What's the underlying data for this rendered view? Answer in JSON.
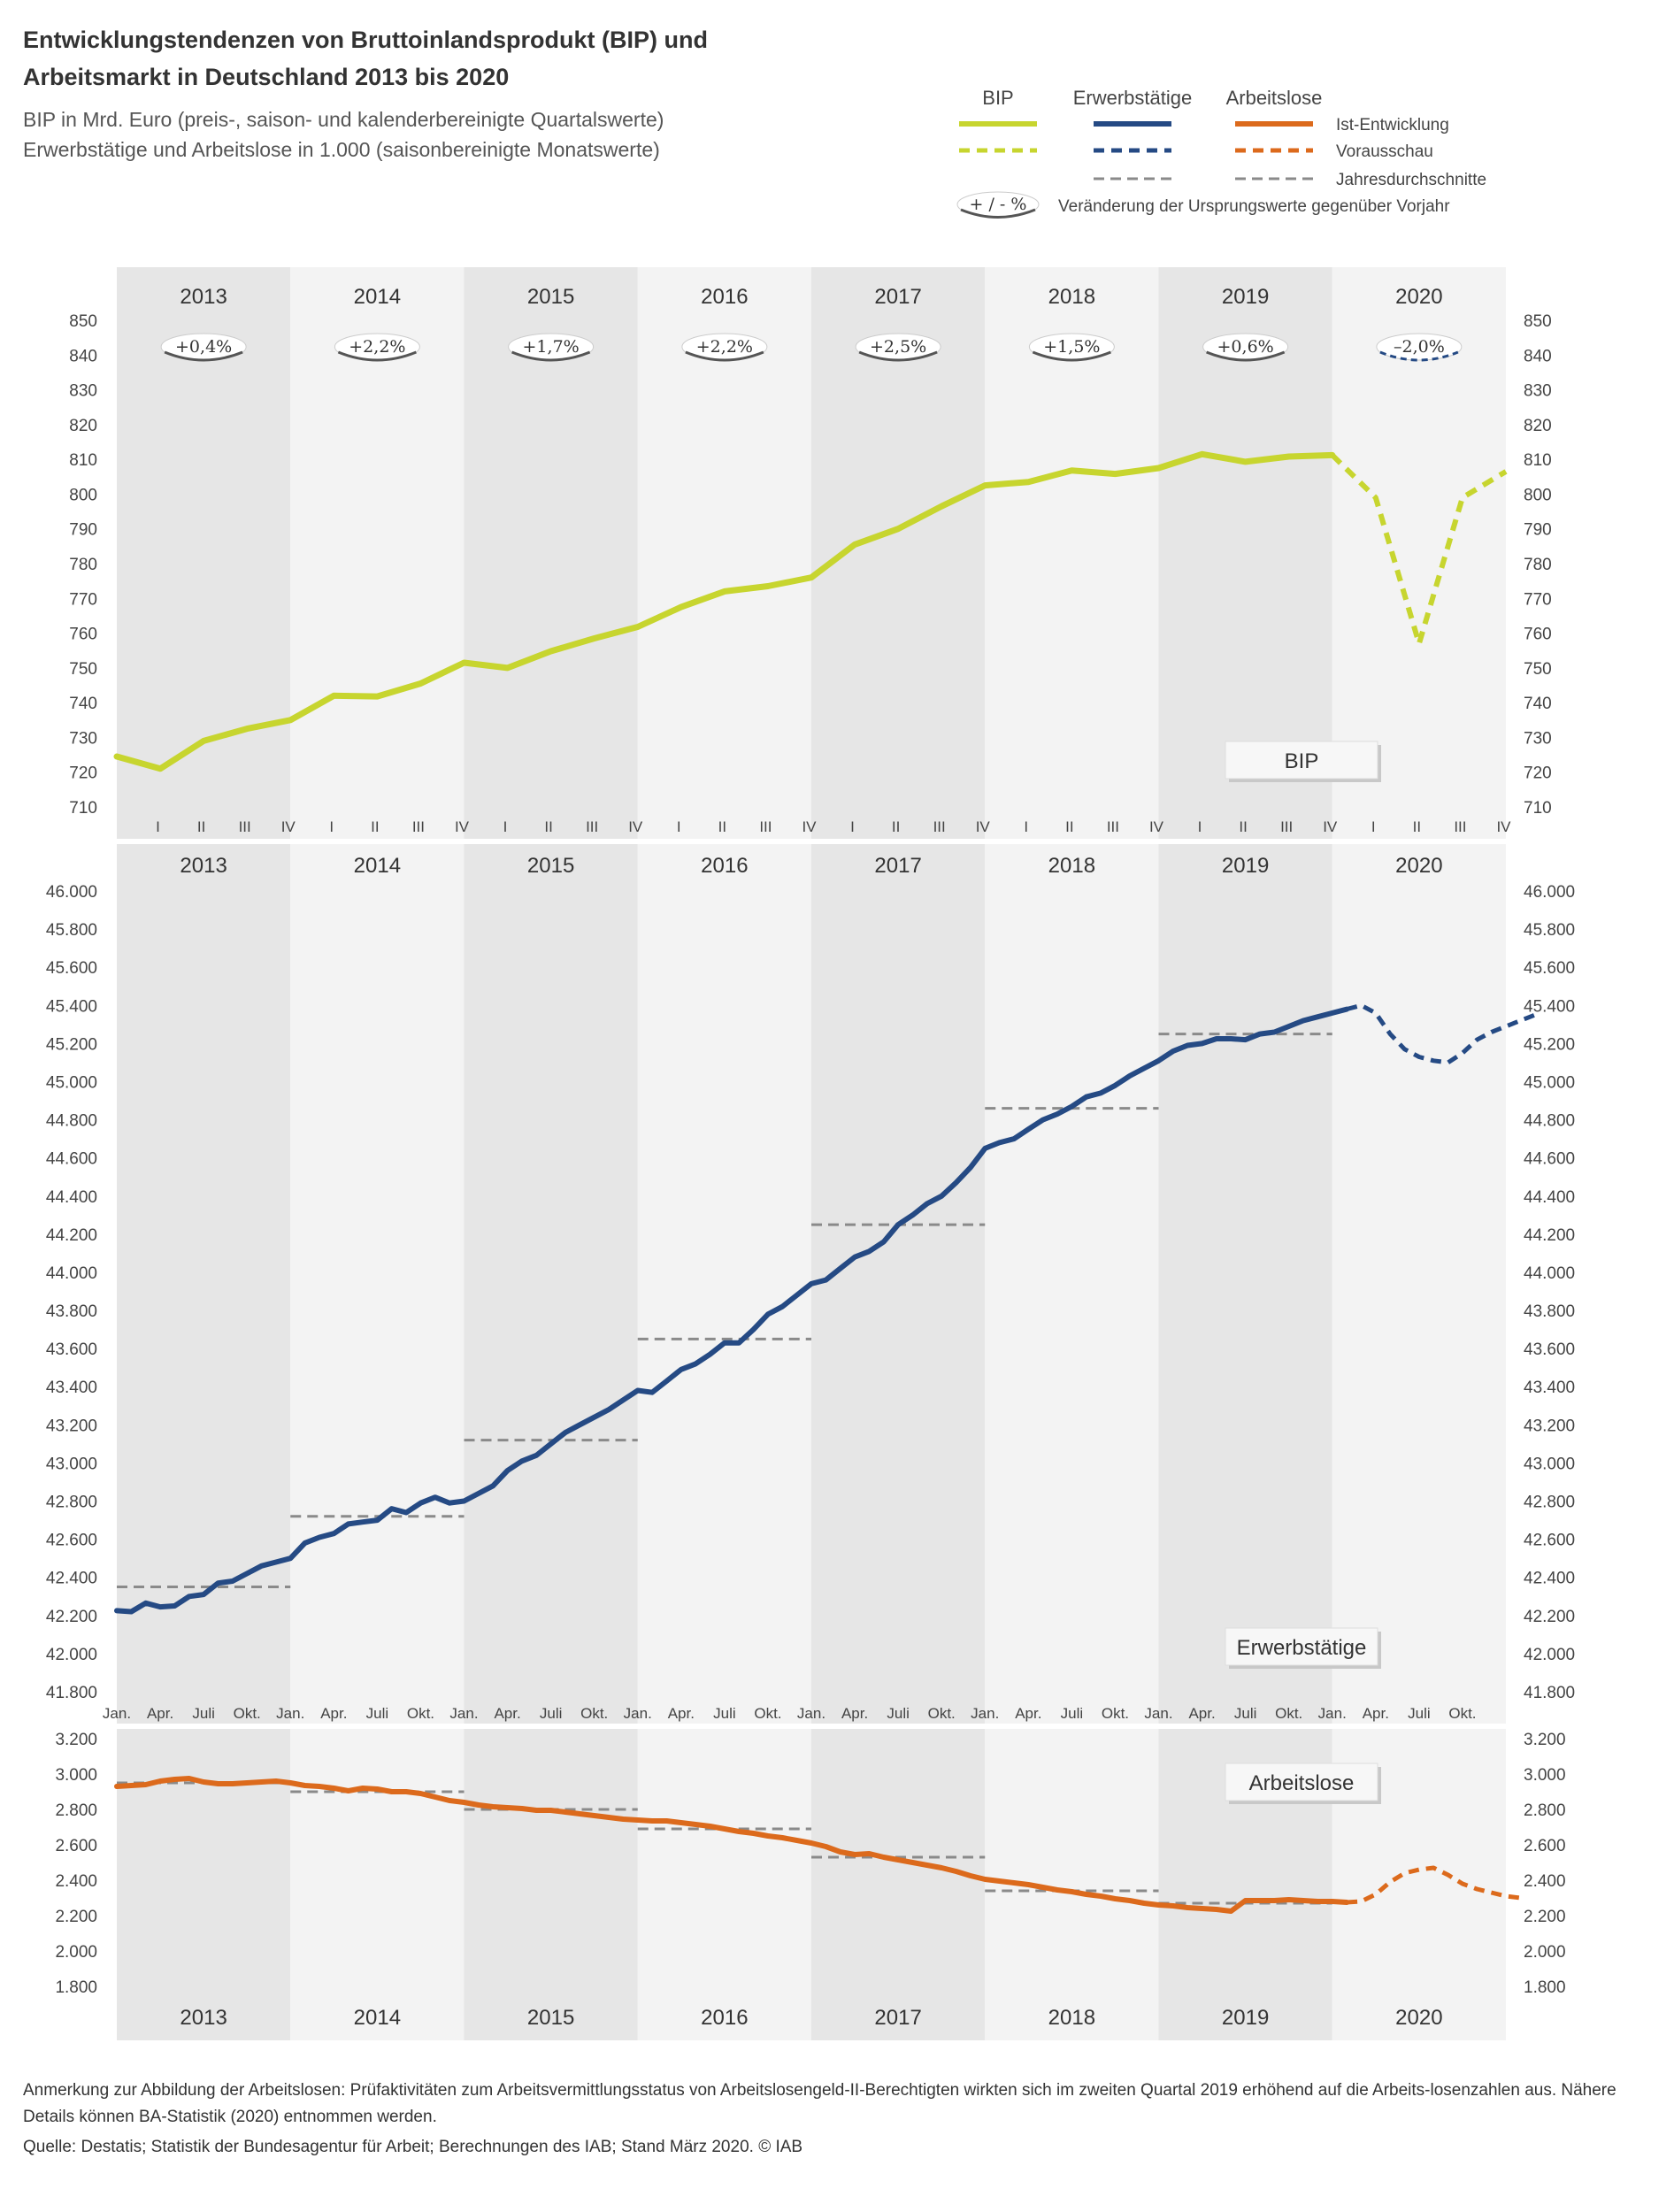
{
  "title_line1": "Entwicklungstendenzen von Bruttoinlandsprodukt (BIP) und",
  "title_line2": "Arbeitsmarkt in Deutschland 2013 bis 2020",
  "subtitle_line1": "BIP in Mrd. Euro (preis-, saison- und kalenderbereinigte Quartalswerte)",
  "subtitle_line2": "Erwerbstätige und Arbeitslose in 1.000 (saisonbereinigte Monatswerte)",
  "legend": {
    "headers": [
      "BIP",
      "Erwerbstätige",
      "Arbeitslose"
    ],
    "actual_label": "Ist-Entwicklung",
    "forecast_label": "Vorausschau",
    "avg_label": "Jahresdurchschnitte",
    "badge_label": "+ / - %",
    "badge_desc": "Veränderung der Ursprungswerte gegenüber Vorjahr"
  },
  "colors": {
    "bip": "#c7d52f",
    "erwerbstaetige": "#254a84",
    "arbeitslose": "#dc6a1c",
    "average": "#8a8a8a",
    "band_dark": "#e6e6e6",
    "band_light": "#f3f3f3"
  },
  "chart_data": [
    {
      "type": "line",
      "name": "BIP",
      "panel_label": "BIP",
      "unit": "Mrd. Euro",
      "years": [
        "2013",
        "2014",
        "2015",
        "2016",
        "2017",
        "2018",
        "2019",
        "2020"
      ],
      "quarter_labels": [
        "I",
        "II",
        "III",
        "IV"
      ],
      "ylim": [
        710,
        850
      ],
      "yticks": [
        "710",
        "720",
        "730",
        "740",
        "750",
        "760",
        "770",
        "780",
        "790",
        "800",
        "810",
        "820",
        "830",
        "840",
        "850"
      ],
      "actual": [
        724.5,
        721,
        729,
        732.5,
        735,
        742,
        741.8,
        745.5,
        751.5,
        750,
        754.8,
        758.5,
        761.8,
        767.5,
        772,
        773.5,
        776,
        785.5,
        790,
        796.5,
        802.5,
        803.5,
        806.8,
        805.8,
        807.5,
        811.5,
        809.3,
        810.8,
        811.2
      ],
      "forecast": [
        811.2,
        799,
        757,
        799,
        806.5
      ],
      "yoy_changes": [
        "+0,4%",
        "+2,2%",
        "+1,7%",
        "+2,2%",
        "+2,5%",
        "+1,5%",
        "+0,6%",
        "–2,0%"
      ]
    },
    {
      "type": "line",
      "name": "Erwerbstätige",
      "panel_label": "Erwerbstätige",
      "unit": "1.000",
      "ylim": [
        41800,
        46000
      ],
      "yticks": [
        "41.800",
        "42.000",
        "42.200",
        "42.400",
        "42.600",
        "42.800",
        "43.000",
        "43.200",
        "43.400",
        "43.600",
        "43.800",
        "44.000",
        "44.200",
        "44.400",
        "44.600",
        "44.800",
        "45.000",
        "45.200",
        "45.400",
        "45.600",
        "45.800",
        "46.000"
      ],
      "month_labels": [
        "Jan.",
        "Apr.",
        "Juli",
        "Okt."
      ],
      "actual": [
        42225,
        42220,
        42265,
        42245,
        42250,
        42300,
        42310,
        42370,
        42380,
        42420,
        42460,
        42480,
        42500,
        42580,
        42610,
        42630,
        42680,
        42690,
        42700,
        42760,
        42740,
        42790,
        42820,
        42790,
        42800,
        42840,
        42880,
        42960,
        43010,
        43040,
        43100,
        43160,
        43200,
        43240,
        43280,
        43330,
        43380,
        43370,
        43430,
        43490,
        43520,
        43570,
        43630,
        43630,
        43700,
        43780,
        43820,
        43880,
        43940,
        43960,
        44020,
        44080,
        44110,
        44160,
        44250,
        44300,
        44360,
        44400,
        44470,
        44550,
        44650,
        44680,
        44700,
        44750,
        44800,
        44830,
        44870,
        44920,
        44940,
        44980,
        45030,
        45070,
        45110,
        45160,
        45190,
        45200,
        45225,
        45225,
        45220,
        45250,
        45260,
        45290,
        45320,
        45340,
        45360,
        45380
      ],
      "forecast": [
        45380,
        45400,
        45360,
        45250,
        45170,
        45130,
        45110,
        45100,
        45150,
        45220,
        45260,
        45290,
        45320,
        45350
      ],
      "averages": [
        42350,
        42720,
        43120,
        43650,
        44250,
        44860,
        45250
      ]
    },
    {
      "type": "line",
      "name": "Arbeitslose",
      "panel_label": "Arbeitslose",
      "unit": "1.000",
      "ylim": [
        1800,
        3200
      ],
      "yticks": [
        "1.800",
        "2.000",
        "2.200",
        "2.400",
        "2.600",
        "2.800",
        "3.000",
        "3.200"
      ],
      "actual": [
        2930,
        2935,
        2940,
        2960,
        2970,
        2975,
        2955,
        2945,
        2945,
        2950,
        2955,
        2960,
        2950,
        2935,
        2930,
        2920,
        2905,
        2920,
        2915,
        2900,
        2900,
        2890,
        2870,
        2850,
        2840,
        2825,
        2815,
        2810,
        2805,
        2795,
        2795,
        2785,
        2775,
        2765,
        2755,
        2745,
        2740,
        2735,
        2735,
        2725,
        2715,
        2705,
        2690,
        2675,
        2665,
        2650,
        2640,
        2625,
        2610,
        2590,
        2560,
        2545,
        2550,
        2530,
        2515,
        2500,
        2485,
        2470,
        2450,
        2425,
        2405,
        2395,
        2385,
        2375,
        2360,
        2345,
        2335,
        2320,
        2310,
        2295,
        2285,
        2270,
        2260,
        2255,
        2245,
        2240,
        2235,
        2225,
        2285,
        2285,
        2285,
        2290,
        2285,
        2280,
        2280,
        2275
      ],
      "forecast": [
        2275,
        2280,
        2320,
        2390,
        2440,
        2460,
        2470,
        2430,
        2380,
        2350,
        2330,
        2310,
        2300
      ],
      "averages": [
        2950,
        2900,
        2800,
        2690,
        2530,
        2340,
        2270
      ]
    }
  ],
  "note": "Anmerkung zur Abbildung der Arbeitslosen: Prüfaktivitäten zum Arbeitsvermittlungsstatus von Arbeitslosengeld-II-Berechtigten wirkten sich im zweiten Quartal 2019 erhöhend auf die Arbeits-losenzahlen aus. Nähere Details können BA-Statistik (2020) entnommen werden.",
  "source": "Quelle: Destatis; Statistik der Bundesagentur für Arbeit; Berechnungen des IAB; Stand März 2020.  © IAB"
}
